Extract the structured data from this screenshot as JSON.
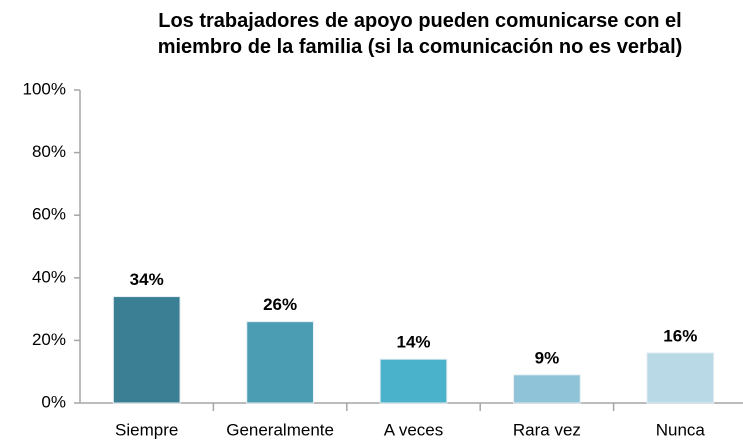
{
  "chart_data": {
    "type": "bar",
    "title": "Los trabajadores de apoyo pueden comunicarse con el\nmiembro de la familia (si la comunicación no es verbal)",
    "categories": [
      "Siempre",
      "Generalmente",
      "A veces",
      "Rara vez",
      "Nunca"
    ],
    "values": [
      34,
      26,
      14,
      9,
      16
    ],
    "value_labels": [
      "34%",
      "26%",
      "14%",
      "9%",
      "16%"
    ],
    "colors": [
      "#3b7f95",
      "#4b9db4",
      "#4bb2cb",
      "#8fc3d7",
      "#b9d9e6"
    ],
    "ylim": [
      0,
      100
    ],
    "yticks": [
      {
        "value": 0,
        "label": "0%"
      },
      {
        "value": 20,
        "label": "20%"
      },
      {
        "value": 40,
        "label": "40%"
      },
      {
        "value": 60,
        "label": "60%"
      },
      {
        "value": 80,
        "label": "80%"
      },
      {
        "value": 100,
        "label": "100%"
      }
    ],
    "grid": false
  }
}
